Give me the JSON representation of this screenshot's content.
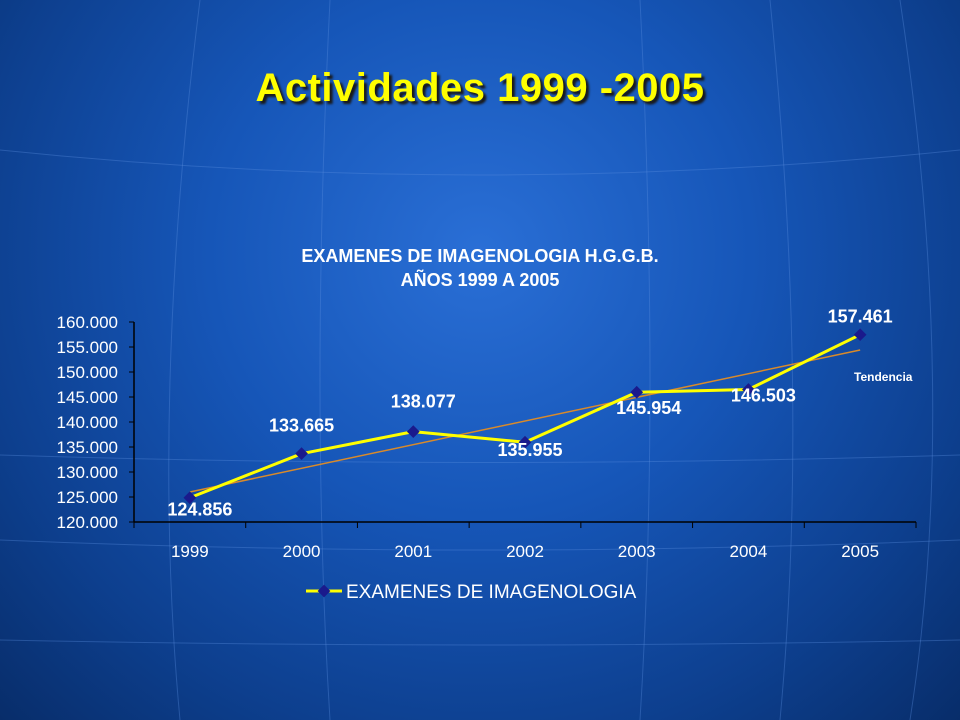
{
  "slide": {
    "title": "Actividades 1999 -2005"
  },
  "chart_data": {
    "type": "line",
    "title": "EXAMENES DE IMAGENOLOGIA  H.G.G.B.",
    "subtitle": "AÑOS 1999 A 2005",
    "categories": [
      "1999",
      "2000",
      "2001",
      "2002",
      "2003",
      "2004",
      "2005"
    ],
    "series": [
      {
        "name": "EXAMENES DE IMAGENOLOGIA",
        "values": [
          124856,
          133665,
          138077,
          135955,
          145954,
          146503,
          157461
        ],
        "labels": [
          "124.856",
          "133.665",
          "138.077",
          "135.955",
          "145.954",
          "146.503",
          "157.461"
        ],
        "color": "#ffff00",
        "marker_color": "#1a1a8c"
      }
    ],
    "trendline": {
      "label": "Tendencia",
      "start": 126000,
      "end": 154400,
      "color": "#d98a2a"
    },
    "yticks": [
      "120.000",
      "125.000",
      "130.000",
      "135.000",
      "140.000",
      "145.000",
      "150.000",
      "155.000",
      "160.000"
    ],
    "ylim": [
      120000,
      160000
    ],
    "grid": false,
    "legend_position": "bottom"
  }
}
